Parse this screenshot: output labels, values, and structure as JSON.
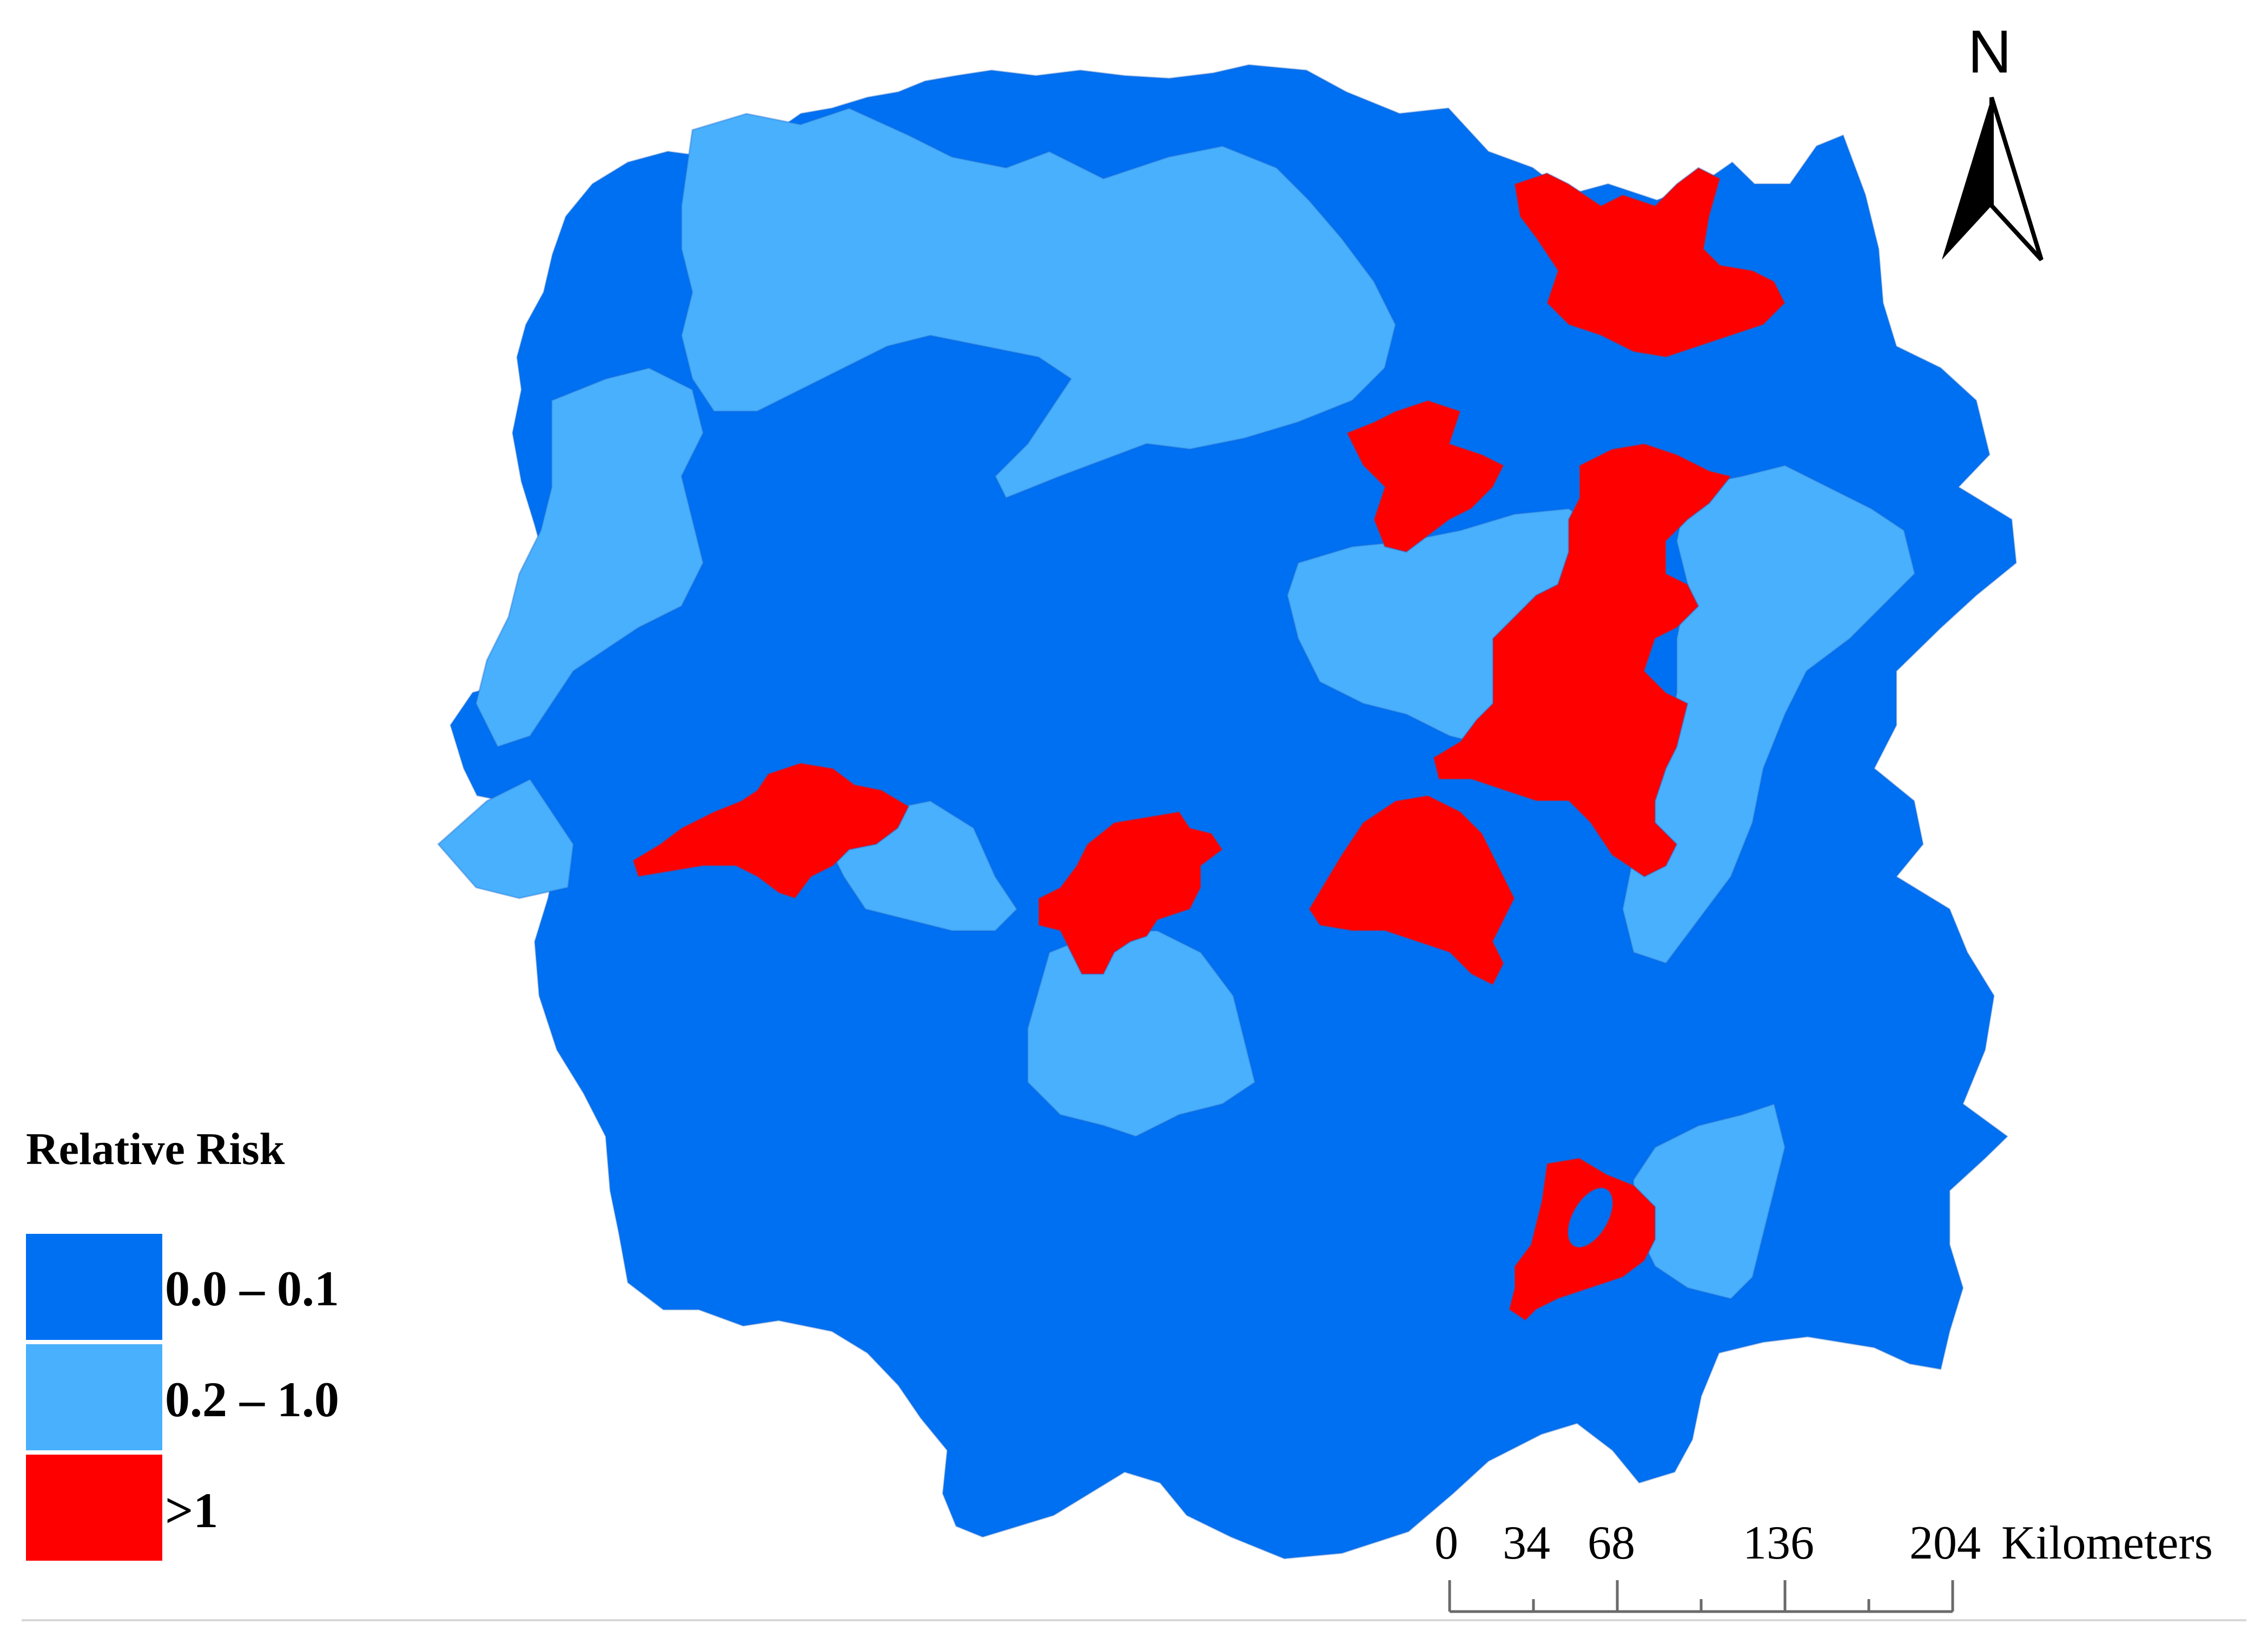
{
  "map": {
    "colors": {
      "low": "#0070f2",
      "mid": "#48b0fd",
      "high": "#ff0000",
      "border": "#1f66c9"
    }
  },
  "legend": {
    "title": "Relative Risk",
    "items": [
      {
        "label": "0.0 – 0.1",
        "color": "#0070f2"
      },
      {
        "label": "0.2 – 1.0",
        "color": "#48b0fd"
      },
      {
        "label": ">1",
        "color": "#ff0000"
      }
    ]
  },
  "north_arrow": {
    "label": "N"
  },
  "scale_bar": {
    "ticks": [
      "0",
      "34",
      "68",
      "136",
      "204"
    ],
    "unit": "Kilometers"
  }
}
